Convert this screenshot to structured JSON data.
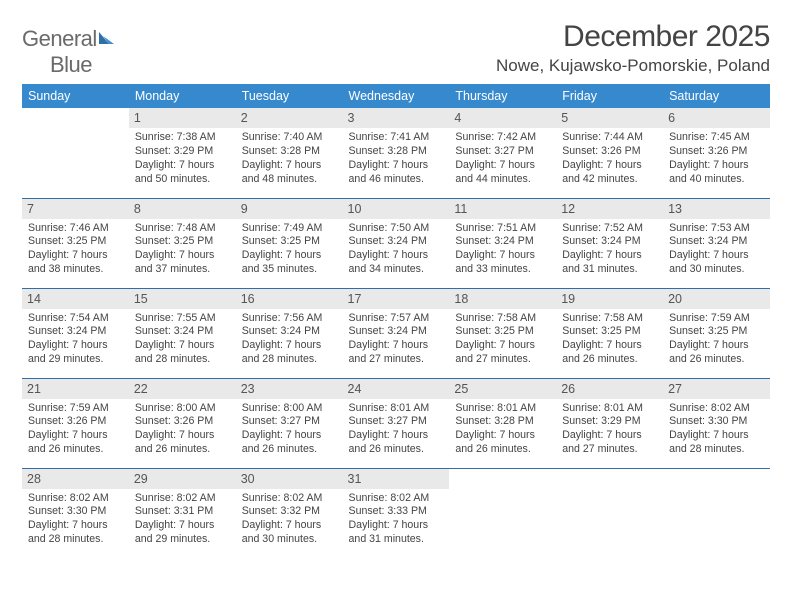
{
  "logo": {
    "word1": "General",
    "word2": "Blue"
  },
  "title": "December 2025",
  "location": "Nowe, Kujawsko-Pomorskie, Poland",
  "colors": {
    "header_bg": "#3789ce",
    "header_text": "#ffffff",
    "daynum_bg": "#e9e9e9",
    "rule": "#2f6fa8",
    "text": "#444444",
    "logo_gray": "#6a6a6a",
    "logo_blue": "#2f7bbf"
  },
  "weekdays": [
    "Sunday",
    "Monday",
    "Tuesday",
    "Wednesday",
    "Thursday",
    "Friday",
    "Saturday"
  ],
  "weeks": [
    [
      null,
      {
        "n": "1",
        "sr": "Sunrise: 7:38 AM",
        "ss": "Sunset: 3:29 PM",
        "d1": "Daylight: 7 hours",
        "d2": "and 50 minutes."
      },
      {
        "n": "2",
        "sr": "Sunrise: 7:40 AM",
        "ss": "Sunset: 3:28 PM",
        "d1": "Daylight: 7 hours",
        "d2": "and 48 minutes."
      },
      {
        "n": "3",
        "sr": "Sunrise: 7:41 AM",
        "ss": "Sunset: 3:28 PM",
        "d1": "Daylight: 7 hours",
        "d2": "and 46 minutes."
      },
      {
        "n": "4",
        "sr": "Sunrise: 7:42 AM",
        "ss": "Sunset: 3:27 PM",
        "d1": "Daylight: 7 hours",
        "d2": "and 44 minutes."
      },
      {
        "n": "5",
        "sr": "Sunrise: 7:44 AM",
        "ss": "Sunset: 3:26 PM",
        "d1": "Daylight: 7 hours",
        "d2": "and 42 minutes."
      },
      {
        "n": "6",
        "sr": "Sunrise: 7:45 AM",
        "ss": "Sunset: 3:26 PM",
        "d1": "Daylight: 7 hours",
        "d2": "and 40 minutes."
      }
    ],
    [
      {
        "n": "7",
        "sr": "Sunrise: 7:46 AM",
        "ss": "Sunset: 3:25 PM",
        "d1": "Daylight: 7 hours",
        "d2": "and 38 minutes."
      },
      {
        "n": "8",
        "sr": "Sunrise: 7:48 AM",
        "ss": "Sunset: 3:25 PM",
        "d1": "Daylight: 7 hours",
        "d2": "and 37 minutes."
      },
      {
        "n": "9",
        "sr": "Sunrise: 7:49 AM",
        "ss": "Sunset: 3:25 PM",
        "d1": "Daylight: 7 hours",
        "d2": "and 35 minutes."
      },
      {
        "n": "10",
        "sr": "Sunrise: 7:50 AM",
        "ss": "Sunset: 3:24 PM",
        "d1": "Daylight: 7 hours",
        "d2": "and 34 minutes."
      },
      {
        "n": "11",
        "sr": "Sunrise: 7:51 AM",
        "ss": "Sunset: 3:24 PM",
        "d1": "Daylight: 7 hours",
        "d2": "and 33 minutes."
      },
      {
        "n": "12",
        "sr": "Sunrise: 7:52 AM",
        "ss": "Sunset: 3:24 PM",
        "d1": "Daylight: 7 hours",
        "d2": "and 31 minutes."
      },
      {
        "n": "13",
        "sr": "Sunrise: 7:53 AM",
        "ss": "Sunset: 3:24 PM",
        "d1": "Daylight: 7 hours",
        "d2": "and 30 minutes."
      }
    ],
    [
      {
        "n": "14",
        "sr": "Sunrise: 7:54 AM",
        "ss": "Sunset: 3:24 PM",
        "d1": "Daylight: 7 hours",
        "d2": "and 29 minutes."
      },
      {
        "n": "15",
        "sr": "Sunrise: 7:55 AM",
        "ss": "Sunset: 3:24 PM",
        "d1": "Daylight: 7 hours",
        "d2": "and 28 minutes."
      },
      {
        "n": "16",
        "sr": "Sunrise: 7:56 AM",
        "ss": "Sunset: 3:24 PM",
        "d1": "Daylight: 7 hours",
        "d2": "and 28 minutes."
      },
      {
        "n": "17",
        "sr": "Sunrise: 7:57 AM",
        "ss": "Sunset: 3:24 PM",
        "d1": "Daylight: 7 hours",
        "d2": "and 27 minutes."
      },
      {
        "n": "18",
        "sr": "Sunrise: 7:58 AM",
        "ss": "Sunset: 3:25 PM",
        "d1": "Daylight: 7 hours",
        "d2": "and 27 minutes."
      },
      {
        "n": "19",
        "sr": "Sunrise: 7:58 AM",
        "ss": "Sunset: 3:25 PM",
        "d1": "Daylight: 7 hours",
        "d2": "and 26 minutes."
      },
      {
        "n": "20",
        "sr": "Sunrise: 7:59 AM",
        "ss": "Sunset: 3:25 PM",
        "d1": "Daylight: 7 hours",
        "d2": "and 26 minutes."
      }
    ],
    [
      {
        "n": "21",
        "sr": "Sunrise: 7:59 AM",
        "ss": "Sunset: 3:26 PM",
        "d1": "Daylight: 7 hours",
        "d2": "and 26 minutes."
      },
      {
        "n": "22",
        "sr": "Sunrise: 8:00 AM",
        "ss": "Sunset: 3:26 PM",
        "d1": "Daylight: 7 hours",
        "d2": "and 26 minutes."
      },
      {
        "n": "23",
        "sr": "Sunrise: 8:00 AM",
        "ss": "Sunset: 3:27 PM",
        "d1": "Daylight: 7 hours",
        "d2": "and 26 minutes."
      },
      {
        "n": "24",
        "sr": "Sunrise: 8:01 AM",
        "ss": "Sunset: 3:27 PM",
        "d1": "Daylight: 7 hours",
        "d2": "and 26 minutes."
      },
      {
        "n": "25",
        "sr": "Sunrise: 8:01 AM",
        "ss": "Sunset: 3:28 PM",
        "d1": "Daylight: 7 hours",
        "d2": "and 26 minutes."
      },
      {
        "n": "26",
        "sr": "Sunrise: 8:01 AM",
        "ss": "Sunset: 3:29 PM",
        "d1": "Daylight: 7 hours",
        "d2": "and 27 minutes."
      },
      {
        "n": "27",
        "sr": "Sunrise: 8:02 AM",
        "ss": "Sunset: 3:30 PM",
        "d1": "Daylight: 7 hours",
        "d2": "and 28 minutes."
      }
    ],
    [
      {
        "n": "28",
        "sr": "Sunrise: 8:02 AM",
        "ss": "Sunset: 3:30 PM",
        "d1": "Daylight: 7 hours",
        "d2": "and 28 minutes."
      },
      {
        "n": "29",
        "sr": "Sunrise: 8:02 AM",
        "ss": "Sunset: 3:31 PM",
        "d1": "Daylight: 7 hours",
        "d2": "and 29 minutes."
      },
      {
        "n": "30",
        "sr": "Sunrise: 8:02 AM",
        "ss": "Sunset: 3:32 PM",
        "d1": "Daylight: 7 hours",
        "d2": "and 30 minutes."
      },
      {
        "n": "31",
        "sr": "Sunrise: 8:02 AM",
        "ss": "Sunset: 3:33 PM",
        "d1": "Daylight: 7 hours",
        "d2": "and 31 minutes."
      },
      null,
      null,
      null
    ]
  ]
}
